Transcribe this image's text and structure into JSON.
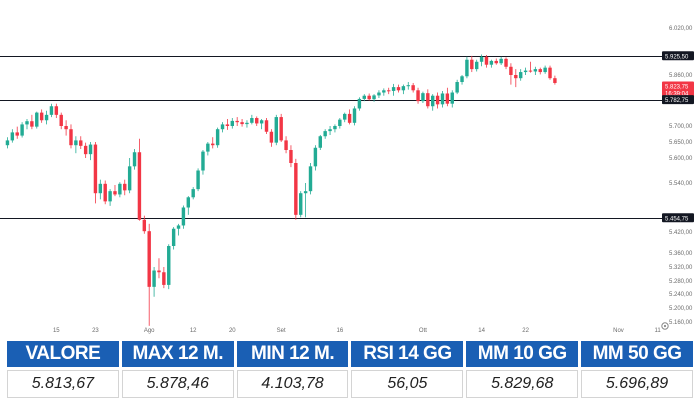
{
  "chart_data": {
    "type": "candlestick",
    "colors": {
      "up": "#22ab94",
      "down": "#f23645",
      "level_line": "#131722",
      "last_price_tag": "#f23645",
      "level_tag": "#131722"
    },
    "y_ticks": [
      "5.160,00",
      "5.200,00",
      "5.240,00",
      "5.280,00",
      "5.320,00",
      "5.360,00",
      "5.420,00",
      "5.540,00",
      "5.600,00",
      "5.650,00",
      "5.700,00",
      "5.860,00",
      "6.020,00"
    ],
    "y_tick_values": [
      5160,
      5200,
      5240,
      5280,
      5320,
      5360,
      5420,
      5540,
      5600,
      5650,
      5700,
      5860,
      6020
    ],
    "x_ticks": [
      "15",
      "23",
      "Ago",
      "12",
      "20",
      "Set",
      "16",
      "Ott",
      "14",
      "22",
      "Nov",
      "11"
    ],
    "x_tick_index": [
      10,
      18,
      29,
      38,
      46,
      56,
      68,
      85,
      97,
      106,
      125,
      133
    ],
    "levels": [
      {
        "label": "5.925,50",
        "value": 5925.5
      },
      {
        "label": "5.782,75",
        "value": 5782.75
      },
      {
        "label": "5.454,75",
        "value": 5454.75
      }
    ],
    "last_price": {
      "label": "5.823,75",
      "countdown": "16:39:04",
      "value": 5823.75
    },
    "candles": [
      [
        5640,
        5665,
        5630,
        5655
      ],
      [
        5655,
        5690,
        5648,
        5680
      ],
      [
        5680,
        5698,
        5660,
        5670
      ],
      [
        5670,
        5712,
        5664,
        5705
      ],
      [
        5705,
        5722,
        5690,
        5715
      ],
      [
        5715,
        5735,
        5690,
        5698
      ],
      [
        5698,
        5745,
        5692,
        5742
      ],
      [
        5742,
        5752,
        5710,
        5718
      ],
      [
        5718,
        5748,
        5705,
        5735
      ],
      [
        5735,
        5770,
        5728,
        5762
      ],
      [
        5762,
        5770,
        5725,
        5735
      ],
      [
        5735,
        5742,
        5690,
        5700
      ],
      [
        5700,
        5718,
        5670,
        5690
      ],
      [
        5690,
        5705,
        5630,
        5640
      ],
      [
        5640,
        5668,
        5615,
        5655
      ],
      [
        5655,
        5668,
        5628,
        5638
      ],
      [
        5638,
        5648,
        5600,
        5612
      ],
      [
        5612,
        5650,
        5595,
        5642
      ],
      [
        5642,
        5650,
        5490,
        5515
      ],
      [
        5515,
        5548,
        5500,
        5538
      ],
      [
        5538,
        5546,
        5488,
        5495
      ],
      [
        5495,
        5525,
        5484,
        5520
      ],
      [
        5520,
        5535,
        5508,
        5512
      ],
      [
        5512,
        5542,
        5505,
        5538
      ],
      [
        5538,
        5548,
        5510,
        5522
      ],
      [
        5522,
        5600,
        5515,
        5580
      ],
      [
        5580,
        5628,
        5572,
        5618
      ],
      [
        5618,
        5660,
        5448,
        5450
      ],
      [
        5450,
        5460,
        5415,
        5422
      ],
      [
        5422,
        5440,
        5150,
        5262
      ],
      [
        5262,
        5320,
        5232,
        5310
      ],
      [
        5310,
        5345,
        5288,
        5305
      ],
      [
        5305,
        5320,
        5258,
        5268
      ],
      [
        5268,
        5385,
        5255,
        5380
      ],
      [
        5380,
        5432,
        5370,
        5428
      ],
      [
        5428,
        5440,
        5410,
        5436
      ],
      [
        5436,
        5485,
        5428,
        5480
      ],
      [
        5480,
        5508,
        5462,
        5505
      ],
      [
        5505,
        5530,
        5500,
        5525
      ],
      [
        5525,
        5575,
        5520,
        5570
      ],
      [
        5570,
        5625,
        5560,
        5620
      ],
      [
        5620,
        5650,
        5608,
        5645
      ],
      [
        5645,
        5665,
        5630,
        5640
      ],
      [
        5640,
        5695,
        5632,
        5690
      ],
      [
        5690,
        5712,
        5680,
        5705
      ],
      [
        5705,
        5722,
        5688,
        5700
      ],
      [
        5700,
        5725,
        5692,
        5716
      ],
      [
        5716,
        5728,
        5700,
        5712
      ],
      [
        5712,
        5722,
        5698,
        5706
      ],
      [
        5706,
        5718,
        5695,
        5710
      ],
      [
        5710,
        5735,
        5705,
        5725
      ],
      [
        5725,
        5730,
        5700,
        5708
      ],
      [
        5708,
        5722,
        5690,
        5718
      ],
      [
        5718,
        5725,
        5675,
        5682
      ],
      [
        5682,
        5690,
        5635,
        5648
      ],
      [
        5648,
        5735,
        5640,
        5728
      ],
      [
        5728,
        5738,
        5650,
        5655
      ],
      [
        5655,
        5668,
        5615,
        5625
      ],
      [
        5625,
        5640,
        5578,
        5588
      ],
      [
        5588,
        5598,
        5450,
        5462
      ],
      [
        5462,
        5520,
        5456,
        5515
      ],
      [
        5515,
        5540,
        5456,
        5520
      ],
      [
        5520,
        5588,
        5512,
        5580
      ],
      [
        5580,
        5640,
        5570,
        5632
      ],
      [
        5632,
        5672,
        5625,
        5668
      ],
      [
        5668,
        5690,
        5660,
        5684
      ],
      [
        5684,
        5700,
        5672,
        5690
      ],
      [
        5690,
        5705,
        5680,
        5700
      ],
      [
        5700,
        5725,
        5692,
        5720
      ],
      [
        5720,
        5742,
        5712,
        5738
      ],
      [
        5738,
        5752,
        5705,
        5710
      ],
      [
        5710,
        5762,
        5702,
        5755
      ],
      [
        5755,
        5790,
        5748,
        5785
      ],
      [
        5785,
        5800,
        5778,
        5795
      ],
      [
        5795,
        5802,
        5780,
        5784
      ],
      [
        5784,
        5800,
        5776,
        5796
      ],
      [
        5796,
        5812,
        5788,
        5805
      ],
      [
        5805,
        5818,
        5795,
        5812
      ],
      [
        5812,
        5820,
        5800,
        5810
      ],
      [
        5810,
        5832,
        5795,
        5822
      ],
      [
        5822,
        5830,
        5805,
        5812
      ],
      [
        5812,
        5830,
        5800,
        5825
      ],
      [
        5825,
        5838,
        5814,
        5828
      ],
      [
        5828,
        5835,
        5805,
        5812
      ],
      [
        5812,
        5820,
        5770,
        5778
      ],
      [
        5778,
        5808,
        5772,
        5803
      ],
      [
        5803,
        5815,
        5755,
        5762
      ],
      [
        5762,
        5800,
        5748,
        5795
      ],
      [
        5795,
        5805,
        5755,
        5768
      ],
      [
        5768,
        5810,
        5758,
        5802
      ],
      [
        5802,
        5820,
        5762,
        5770
      ],
      [
        5770,
        5812,
        5758,
        5805
      ],
      [
        5805,
        5845,
        5800,
        5838
      ],
      [
        5838,
        5860,
        5830,
        5856
      ],
      [
        5856,
        5922,
        5850,
        5912
      ],
      [
        5912,
        5925,
        5870,
        5880
      ],
      [
        5880,
        5912,
        5872,
        5905
      ],
      [
        5905,
        5930,
        5890,
        5922
      ],
      [
        5922,
        5928,
        5885,
        5895
      ],
      [
        5895,
        5912,
        5885,
        5908
      ],
      [
        5908,
        5916,
        5895,
        5900
      ],
      [
        5900,
        5922,
        5894,
        5915
      ],
      [
        5915,
        5920,
        5880,
        5888
      ],
      [
        5888,
        5900,
        5830,
        5860
      ],
      [
        5860,
        5880,
        5822,
        5850
      ],
      [
        5850,
        5880,
        5842,
        5870
      ],
      [
        5870,
        5885,
        5860,
        5875
      ],
      [
        5875,
        5905,
        5868,
        5872
      ],
      [
        5872,
        5888,
        5860,
        5880
      ],
      [
        5880,
        5885,
        5862,
        5870
      ],
      [
        5870,
        5892,
        5864,
        5885
      ],
      [
        5885,
        5892,
        5845,
        5850
      ],
      [
        5850,
        5858,
        5830,
        5835
      ]
    ]
  },
  "stats": {
    "headers": [
      "VALORE",
      "MAX 12 M.",
      "MIN 12 M.",
      "RSI 14 GG",
      "MM 10 GG",
      "MM 50 GG"
    ],
    "values": [
      "5.813,67",
      "5.878,46",
      "4.103,78",
      "56,05",
      "5.829,68",
      "5.696,89"
    ],
    "header_color": "#1a5fb4"
  },
  "settings_icon": "settings-icon"
}
